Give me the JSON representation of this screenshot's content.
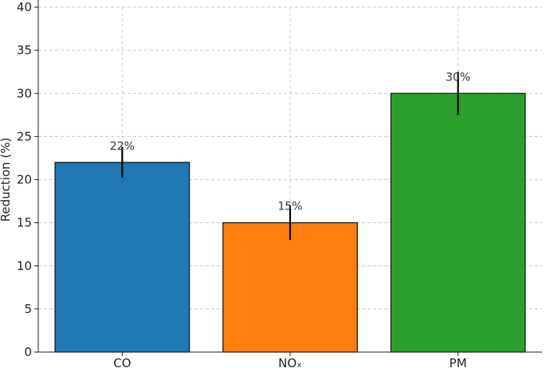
{
  "chart_data": {
    "type": "bar",
    "categories": [
      "CO",
      "NOₓ",
      "PM"
    ],
    "values": [
      22,
      15,
      30
    ],
    "error": [
      1.8,
      2.0,
      2.5
    ],
    "data_labels": [
      "22%",
      "15%",
      "30%"
    ],
    "colors": [
      "#1f77b4",
      "#ff7f0e",
      "#2ca02c"
    ],
    "ylabel": "Reduction (%)",
    "ylim": [
      0,
      40
    ],
    "yticks": [
      0,
      5,
      10,
      15,
      20,
      25,
      30,
      35,
      40
    ],
    "grid": true,
    "legend": "none"
  }
}
